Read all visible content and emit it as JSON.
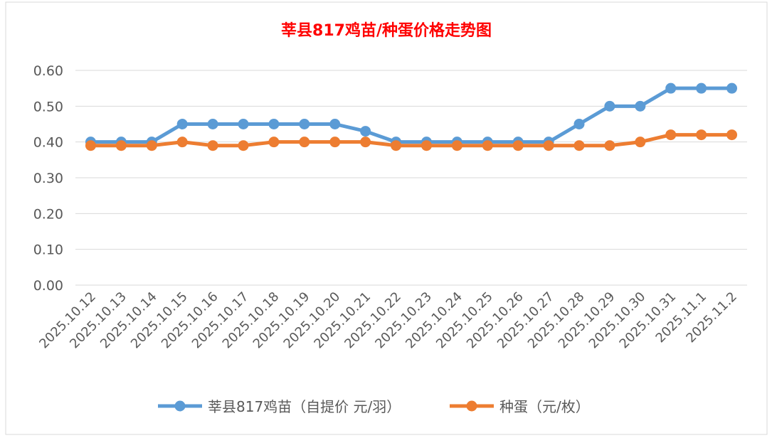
{
  "chart_data": {
    "type": "line",
    "title": "莘县817鸡苗/种蛋价格走势图",
    "title_color": "#FF0000",
    "xlabel": "",
    "ylabel": "",
    "ylim": [
      0,
      0.6
    ],
    "yticks": [
      "0.00",
      "0.10",
      "0.20",
      "0.30",
      "0.40",
      "0.50",
      "0.60"
    ],
    "grid": true,
    "legend_position": "bottom",
    "categories": [
      "2025.10.12",
      "2025.10.13",
      "2025.10.14",
      "2025.10.15",
      "2025.10.16",
      "2025.10.17",
      "2025.10.18",
      "2025.10.19",
      "2025.10.20",
      "2025.10.21",
      "2025.10.22",
      "2025.10.23",
      "2025.10.24",
      "2025.10.25",
      "2025.10.26",
      "2025.10.27",
      "2025.10.28",
      "2025.10.29",
      "2025.10.30",
      "2025.10.31",
      "2025.11.1",
      "2025.11.2"
    ],
    "series": [
      {
        "name": "莘县817鸡苗（自提价 元/羽）",
        "color": "#5B9BD5",
        "values": [
          0.4,
          0.4,
          0.4,
          0.45,
          0.45,
          0.45,
          0.45,
          0.45,
          0.45,
          0.43,
          0.4,
          0.4,
          0.4,
          0.4,
          0.4,
          0.4,
          0.45,
          0.5,
          0.5,
          0.55,
          0.55,
          0.55
        ]
      },
      {
        "name": "种蛋（元/枚）",
        "color": "#ED7D31",
        "values": [
          0.39,
          0.39,
          0.39,
          0.4,
          0.39,
          0.39,
          0.4,
          0.4,
          0.4,
          0.4,
          0.39,
          0.39,
          0.39,
          0.39,
          0.39,
          0.39,
          0.39,
          0.39,
          0.4,
          0.42,
          0.42,
          0.42
        ]
      }
    ]
  }
}
